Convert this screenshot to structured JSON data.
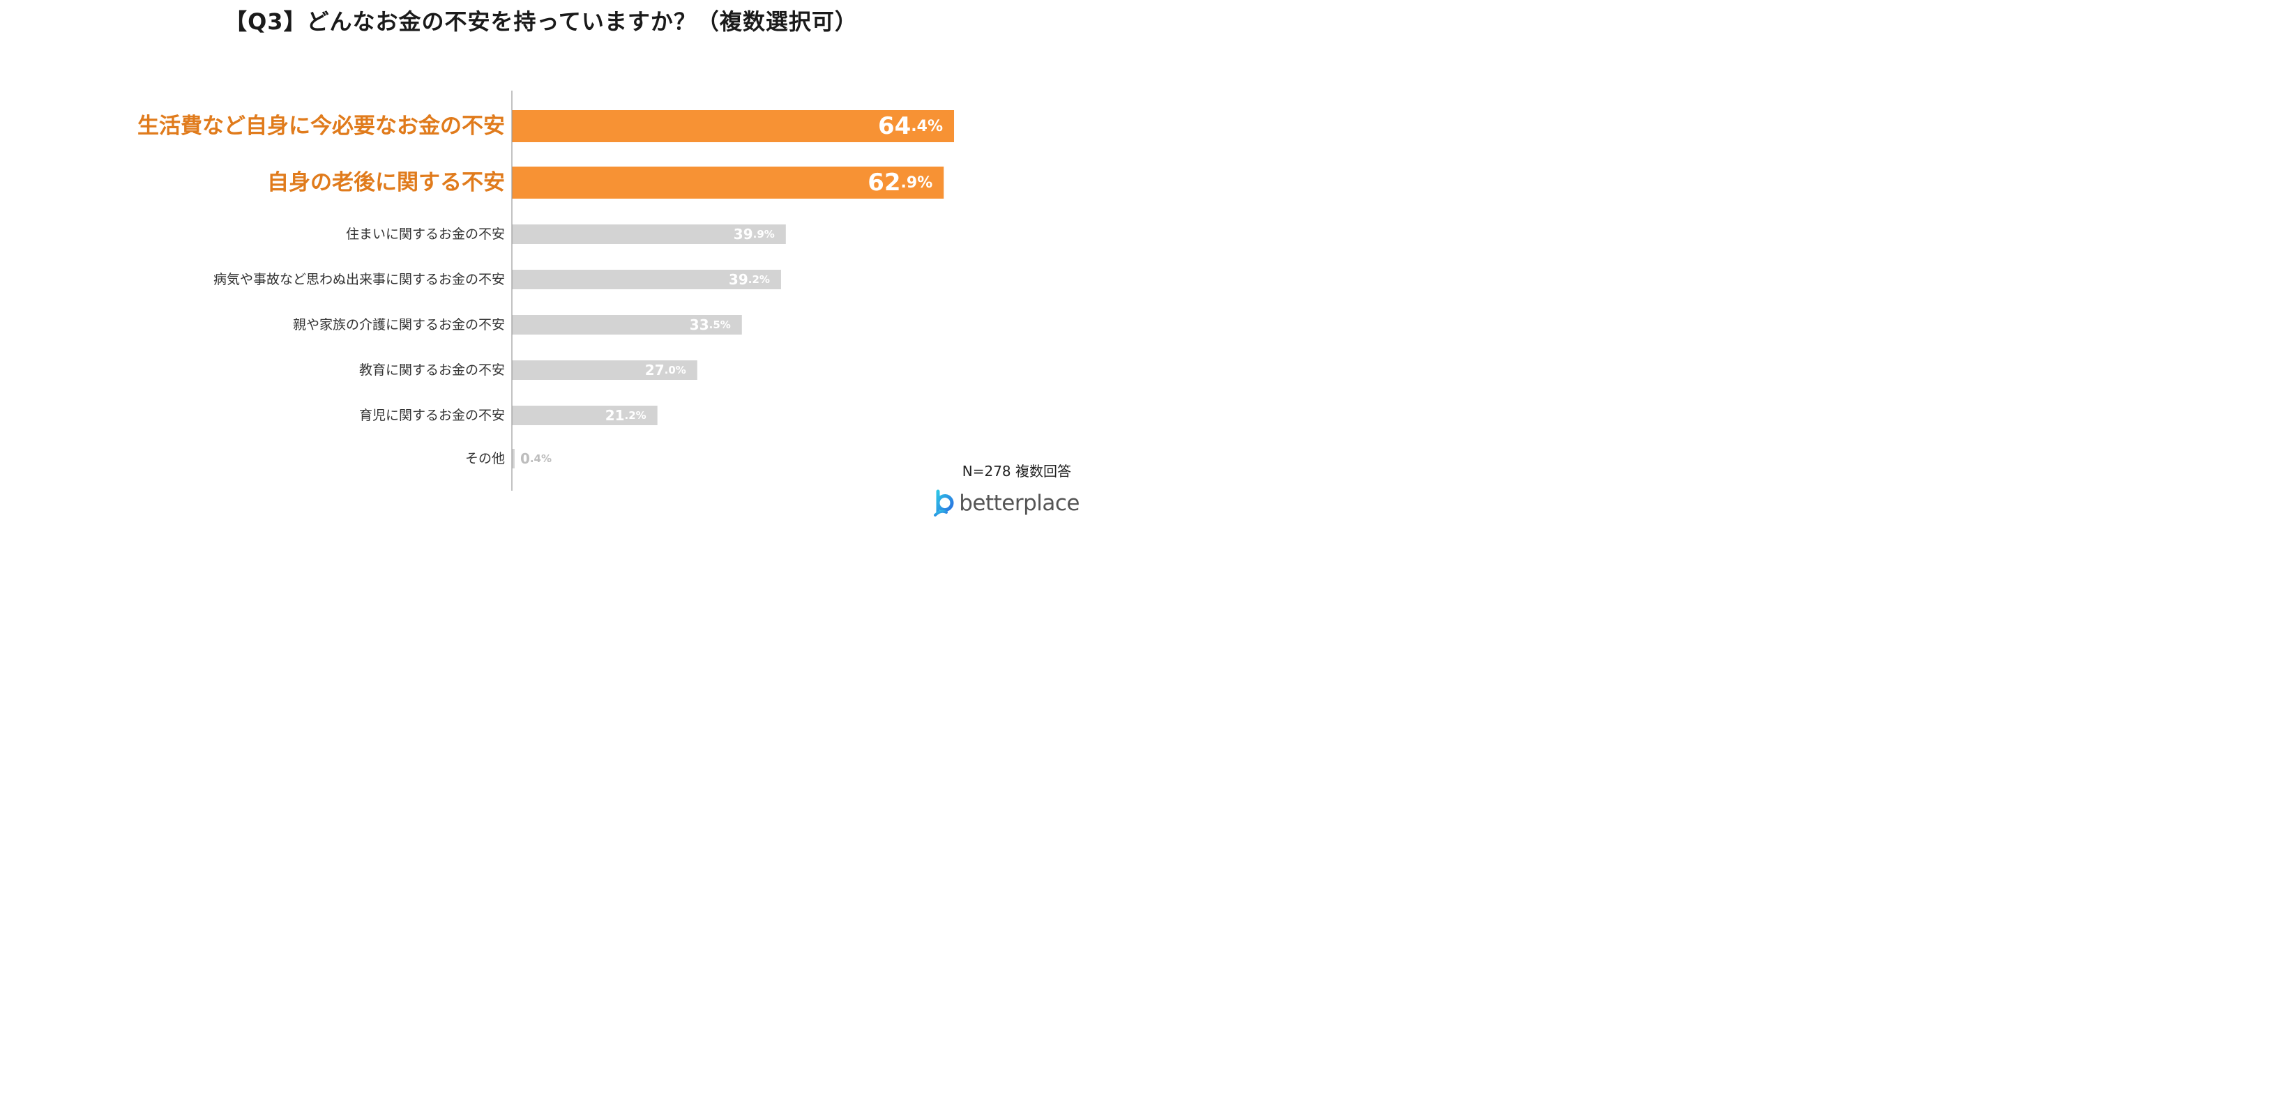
{
  "title": "【Q3】どんなお金の不安を持っていますか？（複数選択可）",
  "note": "N=278 複数回答",
  "logo_text": "betterplace",
  "colors": {
    "highlight": "#F79234",
    "highlight_label": "#E07B1C",
    "muted": "#D3D3D3",
    "muted_value": "#BDBDBD",
    "axis": "#999999",
    "label": "#333333"
  },
  "chart_data": {
    "type": "bar",
    "orientation": "horizontal",
    "categories": [
      "生活費など自身に今必要なお金の不安",
      "自身の老後に関する不安",
      "住まいに関するお金の不安",
      "病気や事故など思わぬ出来事に関するお金の不安",
      "親や家族の介護に関するお金の不安",
      "教育に関するお金の不安",
      "育児に関するお金の不安",
      "その他"
    ],
    "values": [
      64.4,
      62.9,
      39.9,
      39.2,
      33.5,
      27.0,
      21.2,
      0.4
    ],
    "value_labels": [
      "64.4%",
      "62.9%",
      "39.9%",
      "39.2%",
      "33.5%",
      "27.0%",
      "21.2%",
      "0.4%"
    ],
    "highlighted": [
      true,
      true,
      false,
      false,
      false,
      false,
      false,
      false
    ],
    "unit": "%",
    "xlim": [
      0,
      100
    ]
  }
}
